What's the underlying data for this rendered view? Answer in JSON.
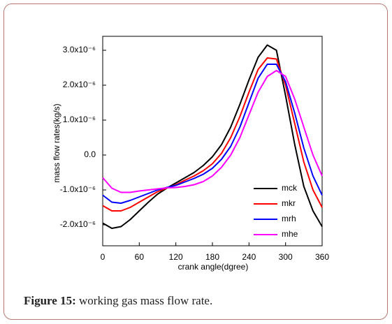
{
  "chart_data": {
    "type": "line",
    "xlabel": "crank angle(dgree)",
    "ylabel": "mass flow rates(kg/s)",
    "x": [
      0,
      15,
      30,
      45,
      60,
      75,
      90,
      105,
      120,
      135,
      150,
      165,
      180,
      195,
      210,
      225,
      240,
      255,
      270,
      285,
      300,
      315,
      330,
      345,
      360
    ],
    "series": [
      {
        "name": "mck",
        "color": "#000000",
        "values": [
          -1.95e-06,
          -2.1e-06,
          -2.05e-06,
          -1.85e-06,
          -1.6e-06,
          -1.35e-06,
          -1.12e-06,
          -9.5e-07,
          -8e-07,
          -6.5e-07,
          -5e-07,
          -3e-07,
          -5e-08,
          3e-07,
          8e-07,
          1.45e-06,
          2.15e-06,
          2.8e-06,
          3.15e-06,
          3e-06,
          1.7e-06,
          3e-07,
          -9e-07,
          -1.6e-06,
          -2.05e-06
        ]
      },
      {
        "name": "mkr",
        "color": "#ff0000",
        "values": [
          -1.45e-06,
          -1.6e-06,
          -1.6e-06,
          -1.5e-06,
          -1.35e-06,
          -1.2e-06,
          -1.05e-06,
          -9.5e-07,
          -8.5e-07,
          -7.2e-07,
          -6e-07,
          -4.5e-07,
          -2.5e-07,
          5e-08,
          5e-07,
          1.1e-06,
          1.8e-06,
          2.45e-06,
          2.78e-06,
          2.75e-06,
          2e-06,
          9e-07,
          -2e-07,
          -1e-06,
          -1.5e-06
        ]
      },
      {
        "name": "mrh",
        "color": "#0000ff",
        "values": [
          -1.15e-06,
          -1.35e-06,
          -1.38e-06,
          -1.3e-06,
          -1.2e-06,
          -1.1e-06,
          -1e-06,
          -9.3e-07,
          -8.7e-07,
          -7.7e-07,
          -6.7e-07,
          -5.5e-07,
          -3.8e-07,
          -1.2e-07,
          2.5e-07,
          8e-07,
          1.5e-06,
          2.2e-06,
          2.6e-06,
          2.6e-06,
          2.1e-06,
          1.2e-06,
          2e-07,
          -6e-07,
          -1.15e-06
        ]
      },
      {
        "name": "mhe",
        "color": "#ff00ff",
        "values": [
          -6.5e-07,
          -9.5e-07,
          -1.07e-06,
          -1.07e-06,
          -1.03e-06,
          -1e-06,
          -9.7e-07,
          -9.4e-07,
          -9.3e-07,
          -9e-07,
          -8.5e-07,
          -7.6e-07,
          -6e-07,
          -3.5e-07,
          0.0,
          5e-07,
          1.15e-06,
          1.8e-06,
          2.25e-06,
          2.42e-06,
          2.25e-06,
          1.6e-06,
          8e-07,
          0.0,
          -6e-07
        ]
      }
    ],
    "xlim": [
      0,
      360
    ],
    "xticks": [
      0,
      60,
      120,
      180,
      240,
      300,
      360
    ],
    "ylim": [
      -2.6e-06,
      3.4e-06
    ],
    "yticks": [
      {
        "value": -2e-06,
        "label": "-2.0x10⁻⁶"
      },
      {
        "value": -1e-06,
        "label": "-1.0x10⁻⁶"
      },
      {
        "value": 0,
        "label": "0.0"
      },
      {
        "value": 1e-06,
        "label": "1.0x10⁻⁶"
      },
      {
        "value": 2e-06,
        "label": "2.0x10⁻⁶"
      },
      {
        "value": 3e-06,
        "label": "3.0x10⁻⁶"
      }
    ],
    "legend": "lower right",
    "grid": false
  },
  "caption": {
    "label": "Figure 15:",
    "text": "working gas mass flow rate."
  }
}
